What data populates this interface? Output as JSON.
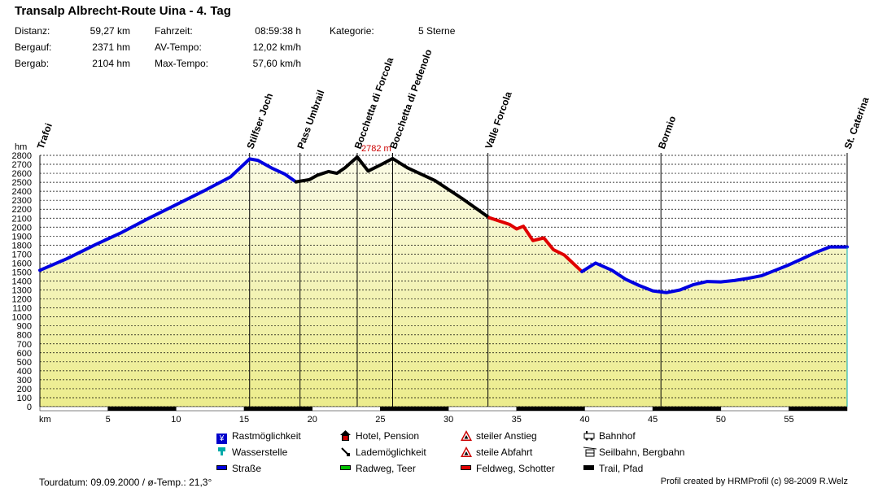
{
  "title": "Transalp Albrecht-Route Uina - 4. Tag",
  "stats": {
    "distanz_label": "Distanz:",
    "distanz_value": "59,27 km",
    "bergauf_label": "Bergauf:",
    "bergauf_value": "2371 hm",
    "bergab_label": "Bergab:",
    "bergab_value": "2104 hm",
    "fahrzeit_label": "Fahrzeit:",
    "fahrzeit_value": "08:59:38 h",
    "av_label": "AV-Tempo:",
    "av_value": "12,02 km/h",
    "max_label": "Max-Tempo:",
    "max_value": "57,60 km/h",
    "kategorie_label": "Kategorie:",
    "kategorie_value": "5 Sterne"
  },
  "legend": [
    {
      "label": "Rastmöglichkeit",
      "icon": "fork-knife-icon",
      "color": "#0000cc"
    },
    {
      "label": "Hotel, Pension",
      "icon": "house-icon",
      "color": "#cc0000"
    },
    {
      "label": "steiler Anstieg",
      "icon": "warning-triangle-icon",
      "color": "#cc0000"
    },
    {
      "label": "Bahnhof",
      "icon": "train-icon",
      "color": "#000000"
    },
    {
      "label": "Wasserstelle",
      "icon": "tap-icon",
      "color": "#00aaaa"
    },
    {
      "label": "Lademöglichkeit",
      "icon": "plug-icon",
      "color": "#000000"
    },
    {
      "label": "steile Abfahrt",
      "icon": "warning-triangle-icon",
      "color": "#cc0000"
    },
    {
      "label": "Seilbahn, Bergbahn",
      "icon": "cablecar-icon",
      "color": "#000000"
    },
    {
      "label": "Straße",
      "icon": "blue-line-icon",
      "color": "#0000e0"
    },
    {
      "label": "Radweg, Teer",
      "icon": "green-line-icon",
      "color": "#00c000"
    },
    {
      "label": "Feldweg, Schotter",
      "icon": "red-line-icon",
      "color": "#e00000"
    },
    {
      "label": "Trail, Pfad",
      "icon": "black-line-icon",
      "color": "#000000"
    }
  ],
  "footer": {
    "left": "Tourdatum: 09.09.2000  /  ø-Temp.: 21,3°",
    "right": "Profil created by HRMProfil (c) 98-2009 R.Welz"
  },
  "chart_data": {
    "type": "area",
    "xlabel": "km",
    "ylabel": "hm",
    "xlim": [
      0,
      59.27
    ],
    "ylim": [
      0,
      2800
    ],
    "xticks": [
      5,
      10,
      15,
      20,
      25,
      30,
      35,
      40,
      45,
      50,
      55
    ],
    "yticks": [
      0,
      100,
      200,
      300,
      400,
      500,
      600,
      700,
      800,
      900,
      1000,
      1100,
      1200,
      1300,
      1400,
      1500,
      1600,
      1700,
      1800,
      1900,
      2000,
      2100,
      2200,
      2300,
      2400,
      2500,
      2600,
      2700,
      2800
    ],
    "max_label": "2782 m",
    "max_point": {
      "x": 23.3,
      "y": 2782
    },
    "waypoints": [
      {
        "name": "Trafoi",
        "km": 0
      },
      {
        "name": "Stilfser Joch",
        "km": 15.4
      },
      {
        "name": "Pass Umbrail",
        "km": 19.1
      },
      {
        "name": "Bocchetta di Forcola",
        "km": 23.3
      },
      {
        "name": "Bocchetta di Pedenolo",
        "km": 25.9
      },
      {
        "name": "Valle Forcola",
        "km": 32.9
      },
      {
        "name": "Bormio",
        "km": 45.6
      },
      {
        "name": "St. Caterina",
        "km": 59.27
      }
    ],
    "series": [
      {
        "name": "Straße",
        "color": "#0000e0",
        "x": [
          0,
          2,
          4,
          6,
          8,
          10,
          12,
          14,
          15.4,
          16,
          17,
          18,
          18.8
        ],
        "y": [
          1520,
          1650,
          1800,
          1940,
          2100,
          2250,
          2400,
          2560,
          2760,
          2745,
          2660,
          2590,
          2505
        ]
      },
      {
        "name": "Trail, Pfad",
        "color": "#000000",
        "x": [
          18.8,
          19.8,
          20.4,
          21.2,
          21.8,
          22.4,
          23.3,
          24.1,
          25.1,
          25.9,
          27,
          29,
          31,
          33
        ],
        "y": [
          2505,
          2530,
          2580,
          2620,
          2600,
          2660,
          2782,
          2625,
          2700,
          2765,
          2660,
          2520,
          2320,
          2105
        ]
      },
      {
        "name": "Feldweg, Schotter",
        "color": "#e00000",
        "x": [
          33,
          34.5,
          35,
          35.5,
          36.2,
          37,
          37.7,
          38.5,
          39.8
        ],
        "y": [
          2105,
          2030,
          1980,
          2010,
          1850,
          1880,
          1750,
          1690,
          1505
        ]
      },
      {
        "name": "Straße",
        "color": "#0000e0",
        "x": [
          39.8,
          40.8,
          42,
          43,
          44,
          45,
          46,
          47,
          48,
          49,
          50,
          51,
          52,
          53,
          54,
          55,
          56,
          57,
          58,
          59.27
        ],
        "y": [
          1505,
          1600,
          1520,
          1420,
          1350,
          1290,
          1270,
          1300,
          1360,
          1395,
          1390,
          1405,
          1430,
          1460,
          1520,
          1580,
          1650,
          1720,
          1780,
          1780
        ]
      }
    ]
  }
}
